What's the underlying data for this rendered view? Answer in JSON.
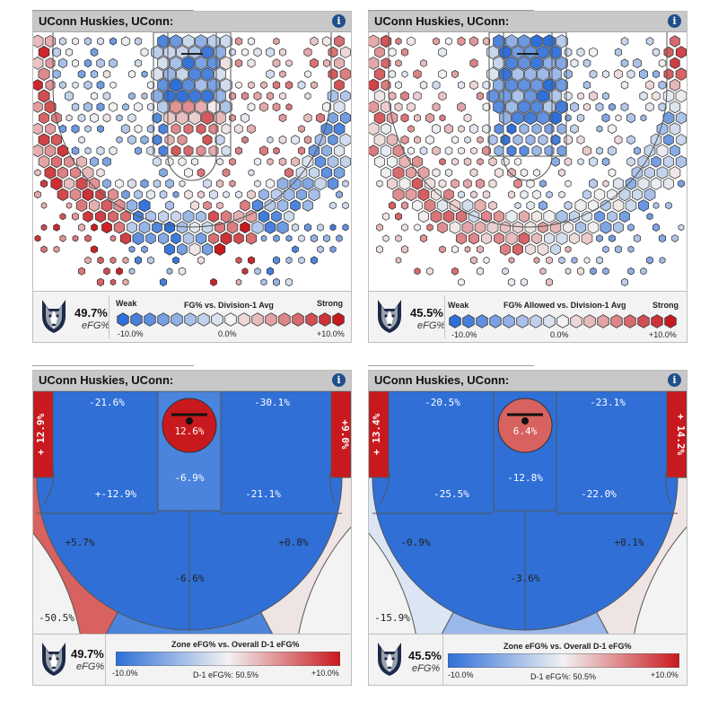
{
  "panels": [
    {
      "title": "UConn Huskies, UConn:",
      "efg": "49.7%",
      "efg_label": "eFG%"
    },
    {
      "title": "UConn Huskies, UConn:",
      "efg": "45.5%",
      "efg_label": "eFG%"
    },
    {
      "title": "UConn Huskies, UConn:",
      "efg": "49.7%",
      "efg_label": "eFG%"
    },
    {
      "title": "UConn Huskies, UConn:",
      "efg": "45.5%",
      "efg_label": "eFG%"
    }
  ],
  "legends": {
    "hex_left": {
      "weak": "Weak",
      "title": "FG% vs. Division-1 Avg",
      "strong": "Strong",
      "min": "-10.0%",
      "mid": "0.0%",
      "max": "+10.0%"
    },
    "hex_right": {
      "weak": "Weak",
      "title": "FG% Allowed vs. Division-1 Avg",
      "strong": "Strong",
      "min": "-10.0%",
      "mid": "0.0%",
      "max": "+10.0%"
    },
    "zone_left": {
      "title": "Zone eFG% vs. Overall D-1 eFG%",
      "min": "-10.0%",
      "mid": "D-1 eFG%: 50.5%",
      "max": "+10.0%"
    },
    "zone_right": {
      "title": "Zone eFG% vs. Overall D-1 eFG%",
      "min": "-10.0%",
      "mid": "D-1 eFG%: 50.5%",
      "max": "+10.0%"
    }
  },
  "colors": {
    "blue": "#2e6fd8",
    "red": "#c8191e",
    "neutral": "#f2f2f2"
  },
  "chart_data": [
    {
      "type": "heatmap",
      "title": "UConn Huskies, UConn:",
      "legend_title": "FG% vs. Division-1 Avg",
      "scale": [
        -10,
        10
      ],
      "regions": [
        {
          "zone": "paint-upper",
          "value": -6
        },
        {
          "zone": "paint-lower",
          "value": 4
        },
        {
          "zone": "paint-left",
          "value": -5
        },
        {
          "zone": "paint-right",
          "value": -1
        },
        {
          "zone": "midrange-left",
          "value": -3
        },
        {
          "zone": "midrange-right",
          "value": 2
        },
        {
          "zone": "left-corner",
          "value": 6
        },
        {
          "zone": "right-corner",
          "value": 5
        },
        {
          "zone": "left-wing-3",
          "value": 6
        },
        {
          "zone": "right-wing-3",
          "value": -5
        },
        {
          "zone": "top-3-left",
          "value": -6
        },
        {
          "zone": "top-3-center",
          "value": -3
        },
        {
          "zone": "top-3-right",
          "value": 7
        }
      ]
    },
    {
      "type": "heatmap",
      "title": "UConn Huskies, UConn:",
      "legend_title": "FG% Allowed vs. Division-1 Avg",
      "scale": [
        -10,
        10
      ],
      "regions": [
        {
          "zone": "paint-upper",
          "value": -7
        },
        {
          "zone": "paint-lower",
          "value": -7
        },
        {
          "zone": "paint-left",
          "value": -5
        },
        {
          "zone": "paint-right",
          "value": -6
        },
        {
          "zone": "midrange-left",
          "value": 2
        },
        {
          "zone": "midrange-right",
          "value": -2
        },
        {
          "zone": "left-corner",
          "value": 6
        },
        {
          "zone": "right-corner",
          "value": 5
        },
        {
          "zone": "left-wing-3",
          "value": 3
        },
        {
          "zone": "right-wing-3",
          "value": -3
        },
        {
          "zone": "top-3-left",
          "value": 2
        },
        {
          "zone": "top-3-center",
          "value": 3
        },
        {
          "zone": "top-3-right",
          "value": -1
        }
      ]
    },
    {
      "type": "heatmap",
      "title": "UConn Huskies, UConn:",
      "legend_title": "Zone eFG% vs. Overall D-1 eFG%",
      "scale": [
        -10,
        10
      ],
      "zones": [
        {
          "zone": "rim",
          "label": "12.6%",
          "value": 12.6
        },
        {
          "zone": "paint",
          "label": "-6.9%",
          "value": -6.9
        },
        {
          "zone": "left-baseline",
          "label": "-21.6%",
          "value": -21.6
        },
        {
          "zone": "right-baseline",
          "label": "-30.1%",
          "value": -30.1
        },
        {
          "zone": "left-elbow",
          "label": "+-12.9%",
          "value": -12.9
        },
        {
          "zone": "right-elbow",
          "label": "-21.1%",
          "value": -21.1
        },
        {
          "zone": "left-corner-3",
          "label": "+ 12.9%",
          "value": 12.9
        },
        {
          "zone": "right-corner-3",
          "label": "+9.0%",
          "value": 9.0
        },
        {
          "zone": "left-wing-3",
          "label": "+5.7%",
          "value": 5.7
        },
        {
          "zone": "right-wing-3",
          "label": "+0.8%",
          "value": 0.8
        },
        {
          "zone": "top-3",
          "label": "-6.6%",
          "value": -6.6
        },
        {
          "zone": "deep",
          "label": "-50.5%",
          "value": -50.5
        }
      ]
    },
    {
      "type": "heatmap",
      "title": "UConn Huskies, UConn:",
      "legend_title": "Zone eFG% vs. Overall D-1 eFG%",
      "scale": [
        -10,
        10
      ],
      "zones": [
        {
          "zone": "rim",
          "label": "6.4%",
          "value": 6.4
        },
        {
          "zone": "paint",
          "label": "-12.8%",
          "value": -12.8
        },
        {
          "zone": "left-baseline",
          "label": "-20.5%",
          "value": -20.5
        },
        {
          "zone": "right-baseline",
          "label": "-23.1%",
          "value": -23.1
        },
        {
          "zone": "left-elbow",
          "label": "-25.5%",
          "value": -25.5
        },
        {
          "zone": "right-elbow",
          "label": "-22.0%",
          "value": -22.0
        },
        {
          "zone": "left-corner-3",
          "label": "+ 13.4%",
          "value": 13.4
        },
        {
          "zone": "right-corner-3",
          "label": "+ 14.2%",
          "value": 14.2
        },
        {
          "zone": "left-wing-3",
          "label": "-0.9%",
          "value": -0.9
        },
        {
          "zone": "right-wing-3",
          "label": "+0.1%",
          "value": 0.1
        },
        {
          "zone": "top-3",
          "label": "-3.6%",
          "value": -3.6
        },
        {
          "zone": "deep",
          "label": "-15.9%",
          "value": -15.9
        }
      ]
    }
  ]
}
